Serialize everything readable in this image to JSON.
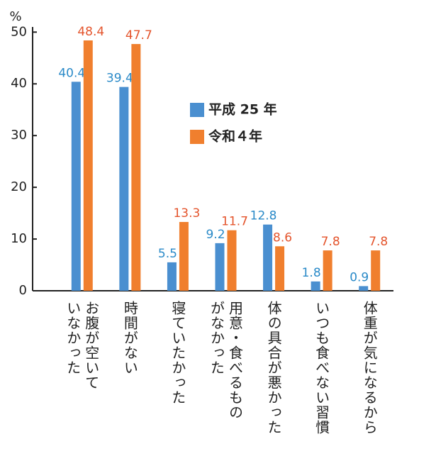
{
  "chart_data": {
    "type": "bar",
    "y_label": "%",
    "categories": [
      "お腹が空いて\nいなかった",
      "時間がない",
      "寝ていたかった",
      "用意・食べるもの\nがなかった",
      "体の具合が悪かった",
      "いつも食べない習慣",
      "体重が気になるから"
    ],
    "series": [
      {
        "name": "平成 25 年",
        "color": "#4a8fd0",
        "label_color": "#2a8ac8",
        "values": [
          40.4,
          39.4,
          5.5,
          9.2,
          12.8,
          1.8,
          0.9
        ]
      },
      {
        "name": "令和４年",
        "color": "#f07f2e",
        "label_color": "#e4542c",
        "values": [
          48.4,
          47.7,
          13.3,
          11.7,
          8.6,
          7.8,
          7.8
        ]
      }
    ],
    "ylim": [
      0,
      51
    ],
    "yticks": [
      0,
      10,
      20,
      30,
      40,
      50
    ],
    "grid": false
  }
}
